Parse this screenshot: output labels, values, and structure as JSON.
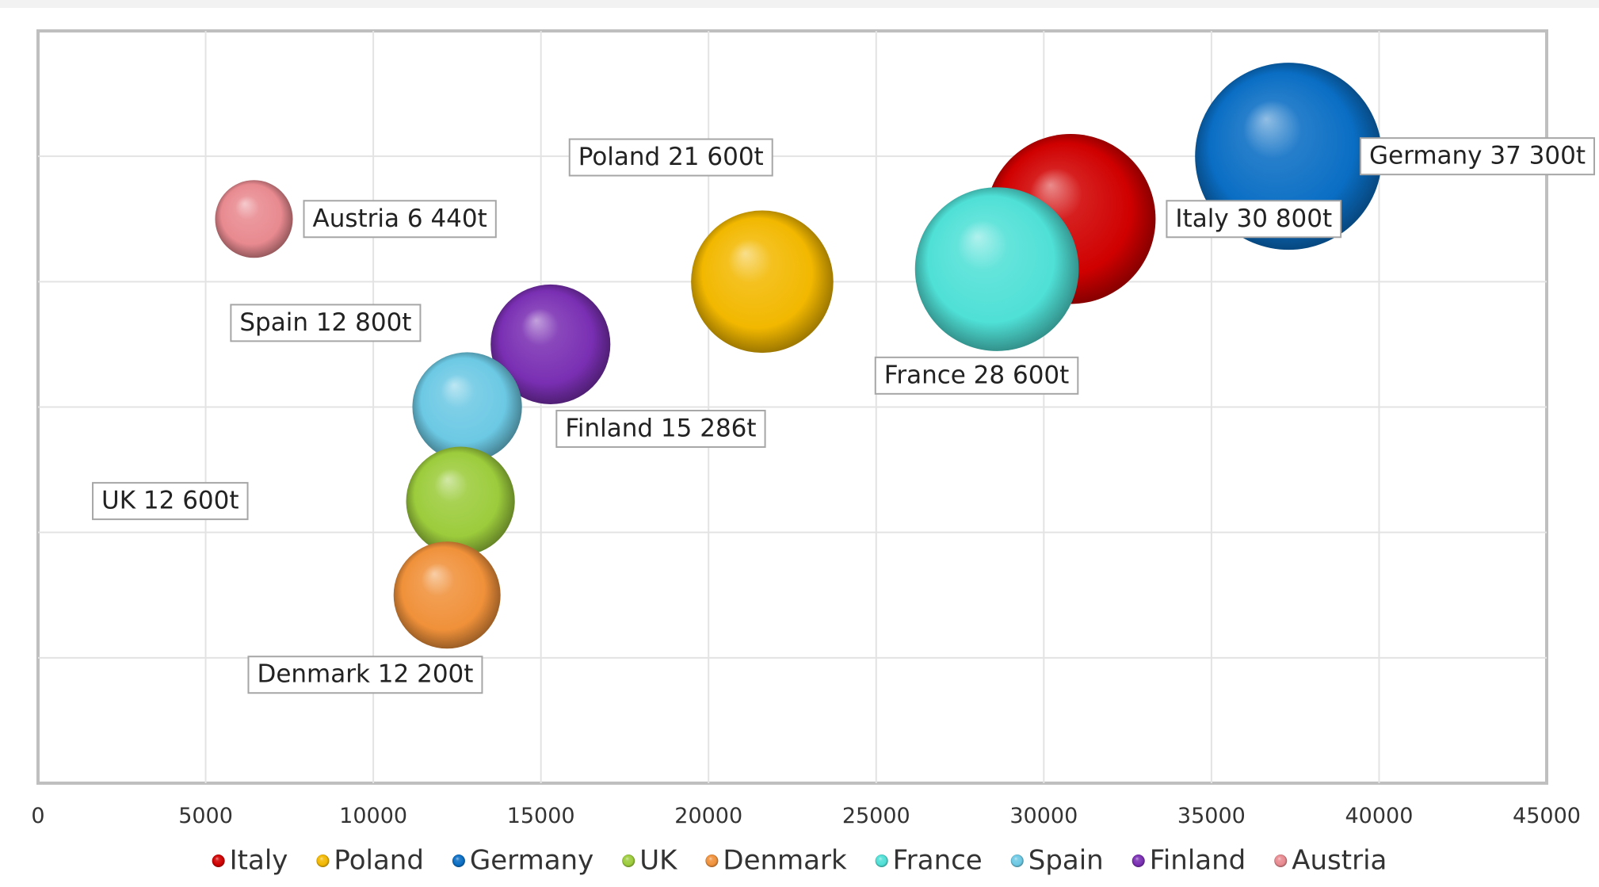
{
  "chart_data": {
    "type": "scatter",
    "subtype": "bubble-3d",
    "title": "",
    "xlabel": "",
    "ylabel": "",
    "xlim": [
      0,
      45000
    ],
    "ylim": [
      0,
      6
    ],
    "x_ticks": [
      "0",
      "5000",
      "10000",
      "15000",
      "20000",
      "25000",
      "30000",
      "35000",
      "40000",
      "45000"
    ],
    "y_tick_labels_visible": false,
    "grid": true,
    "legend_position": "bottom",
    "series": [
      {
        "name": "Italy",
        "x": 30800,
        "y": 4.5,
        "size": 30800,
        "color": "#d00000",
        "label": "Italy 30 800t"
      },
      {
        "name": "Poland",
        "x": 21600,
        "y": 4.0,
        "size": 21600,
        "color": "#f2b800",
        "label": "Poland 21 600t"
      },
      {
        "name": "Germany",
        "x": 37300,
        "y": 5.0,
        "size": 37300,
        "color": "#0a6ec4",
        "label": "Germany 37 300t"
      },
      {
        "name": "UK",
        "x": 12600,
        "y": 2.25,
        "size": 12600,
        "color": "#9ccc3c",
        "label": "UK 12 600t"
      },
      {
        "name": "Denmark",
        "x": 12200,
        "y": 1.5,
        "size": 12200,
        "color": "#f0913a",
        "label": "Denmark 12 200t"
      },
      {
        "name": "France",
        "x": 28600,
        "y": 4.1,
        "size": 28600,
        "color": "#4fe0d6",
        "label": "France 28 600t"
      },
      {
        "name": "Spain",
        "x": 12800,
        "y": 3.0,
        "size": 12800,
        "color": "#6cc9e4",
        "label": "Spain 12 800t"
      },
      {
        "name": "Finland",
        "x": 15286,
        "y": 3.5,
        "size": 15286,
        "color": "#7a2fb3",
        "label": "Finland 15 286t"
      },
      {
        "name": "Austria",
        "x": 6440,
        "y": 4.5,
        "size": 6440,
        "color": "#e88a90",
        "label": "Austria 6 440t"
      }
    ]
  }
}
